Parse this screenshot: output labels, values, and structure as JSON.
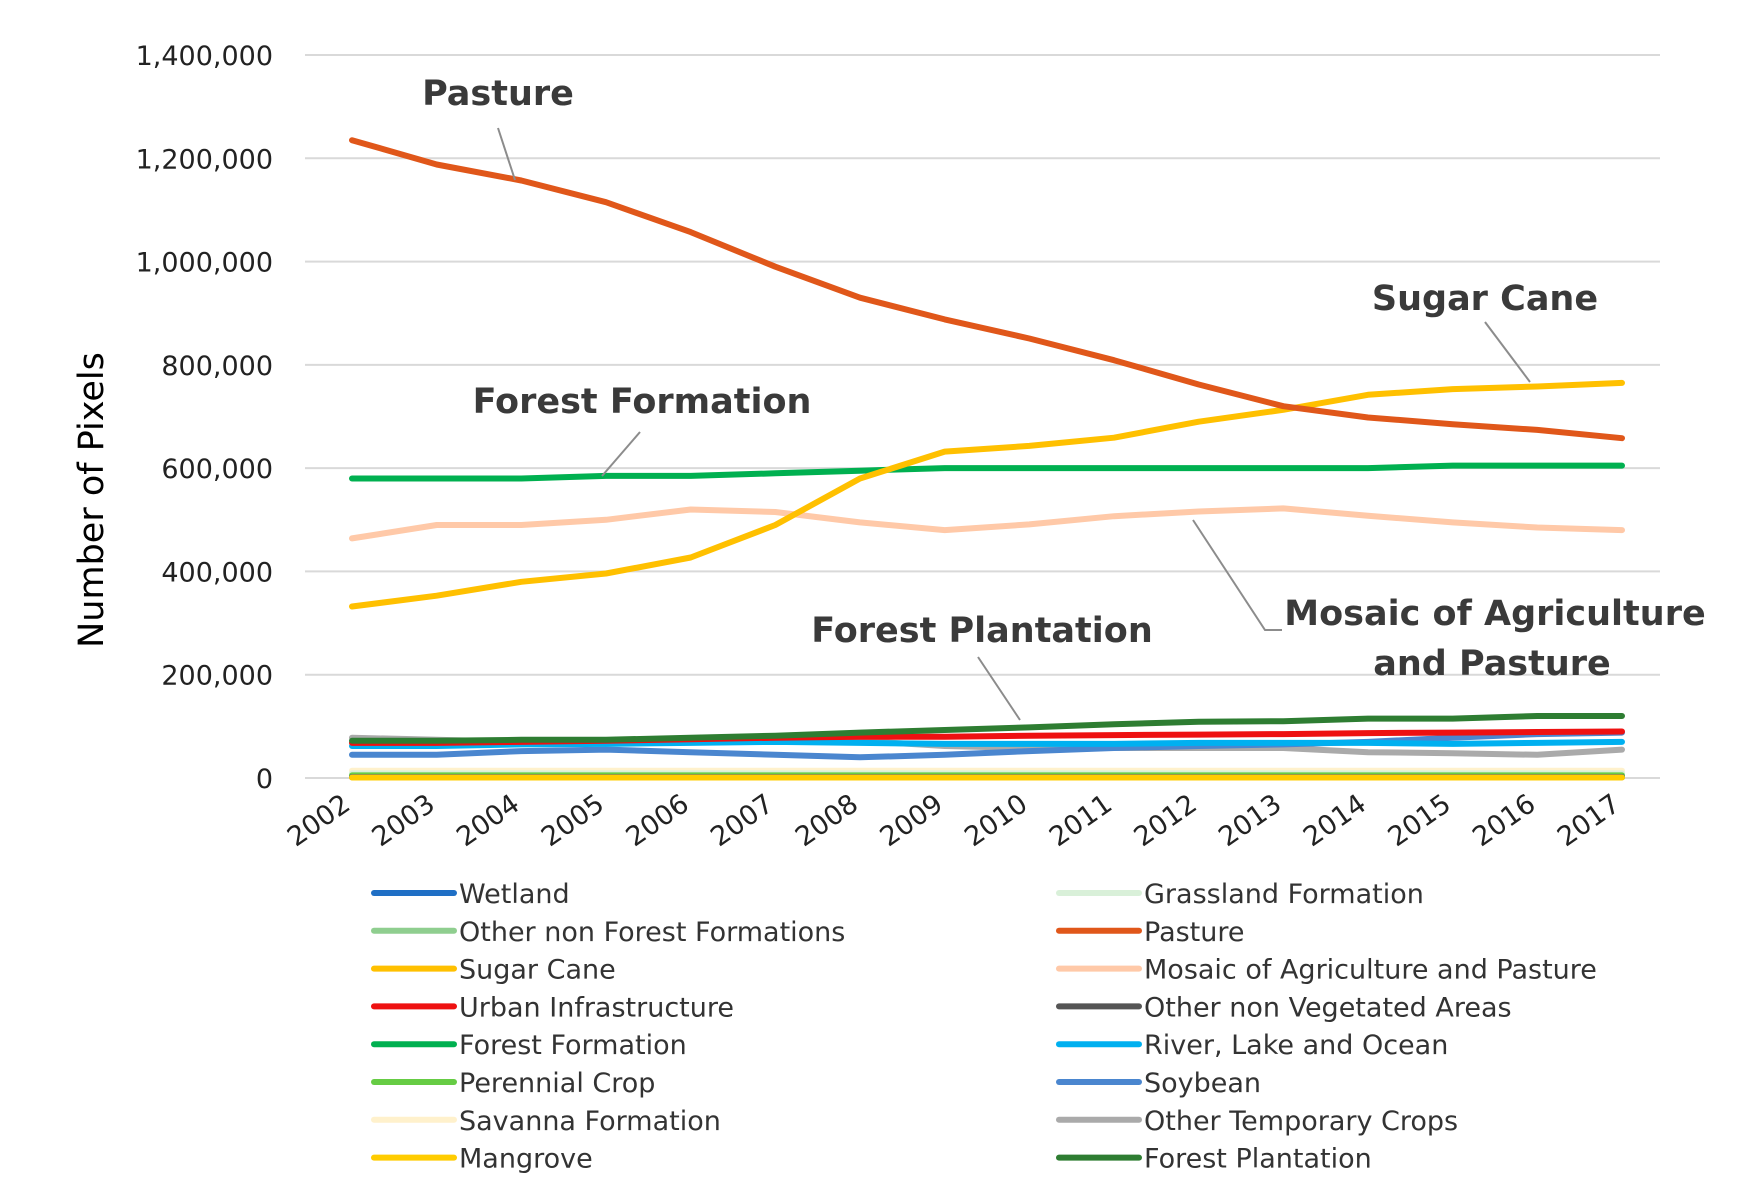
{
  "chart_data": {
    "type": "line",
    "title": "",
    "xlabel": "",
    "ylabel": "Number of Pixels",
    "ylim": [
      0,
      1400000
    ],
    "y_ticks": [
      0,
      200000,
      400000,
      600000,
      800000,
      1000000,
      1200000,
      1400000
    ],
    "y_tick_labels": [
      "0",
      "200,000",
      "400,000",
      "600,000",
      "800,000",
      "1,000,000",
      "1,200,000",
      "1,400,000"
    ],
    "grid": true,
    "legend_position": "bottom",
    "x": [
      "2002",
      "2003",
      "2004",
      "2005",
      "2006",
      "2007",
      "2008",
      "2009",
      "2010",
      "2011",
      "2012",
      "2013",
      "2014",
      "2015",
      "2016",
      "2017"
    ],
    "series": [
      {
        "name": "Wetland",
        "color": "#1f6fc5",
        "values": [
          1500,
          1500,
          1500,
          1500,
          1500,
          1500,
          1500,
          1500,
          1500,
          1500,
          1500,
          1500,
          1500,
          1500,
          1500,
          1500
        ]
      },
      {
        "name": "Grassland Formation",
        "color": "#d9f0d9",
        "values": [
          9000,
          9000,
          9000,
          9000,
          9000,
          9000,
          9000,
          9000,
          9000,
          9000,
          9000,
          9000,
          9000,
          9000,
          9000,
          9000
        ]
      },
      {
        "name": "Other non Forest Formations",
        "color": "#8fce8f",
        "values": [
          3000,
          3000,
          3000,
          3000,
          3000,
          3000,
          3000,
          3000,
          3000,
          3000,
          3000,
          3000,
          3000,
          3000,
          3000,
          3000
        ]
      },
      {
        "name": "Pasture",
        "color": "#e0571a",
        "values": [
          1235000,
          1188000,
          1157000,
          1115000,
          1057000,
          990000,
          930000,
          888000,
          851000,
          809000,
          762000,
          720000,
          698000,
          685000,
          674000,
          658000
        ]
      },
      {
        "name": "Sugar Cane",
        "color": "#ffc000",
        "values": [
          332000,
          353000,
          380000,
          396000,
          427000,
          490000,
          580000,
          632000,
          643000,
          659000,
          690000,
          713000,
          742000,
          753000,
          758000,
          765000
        ]
      },
      {
        "name": "Mosaic of Agriculture and Pasture",
        "color": "#ffc9a8",
        "values": [
          464000,
          490000,
          490000,
          500000,
          520000,
          515000,
          495000,
          480000,
          491000,
          507000,
          516000,
          522000,
          508000,
          495000,
          485000,
          480000
        ]
      },
      {
        "name": "Urban Infrastructure",
        "color": "#ee1111",
        "values": [
          68000,
          68000,
          70000,
          72000,
          75000,
          78000,
          80000,
          80000,
          82000,
          83000,
          84000,
          85000,
          87000,
          88000,
          89000,
          90000
        ]
      },
      {
        "name": "Other non Vegetated Areas",
        "color": "#555555",
        "values": [
          2000,
          2000,
          2000,
          2000,
          2000,
          2000,
          2000,
          2000,
          2000,
          2000,
          2000,
          2000,
          2000,
          2000,
          2000,
          2000
        ]
      },
      {
        "name": "Forest Formation",
        "color": "#00b050",
        "values": [
          580000,
          580000,
          580000,
          585000,
          585000,
          590000,
          595000,
          600000,
          600000,
          600000,
          600000,
          600000,
          600000,
          605000,
          605000,
          605000
        ]
      },
      {
        "name": "River, Lake and Ocean",
        "color": "#00b0f0",
        "values": [
          62000,
          62000,
          65000,
          66000,
          68000,
          70000,
          68000,
          66000,
          66000,
          66000,
          68000,
          68000,
          68000,
          66000,
          68000,
          70000
        ]
      },
      {
        "name": "Perennial Crop",
        "color": "#66cc44",
        "values": [
          5000,
          5000,
          5000,
          5000,
          5000,
          5000,
          5000,
          5000,
          5000,
          5000,
          5000,
          5000,
          5000,
          5000,
          5000,
          5000
        ]
      },
      {
        "name": "Soybean",
        "color": "#4a86cf",
        "values": [
          45000,
          45000,
          52000,
          55000,
          50000,
          45000,
          40000,
          45000,
          52000,
          58000,
          62000,
          65000,
          70000,
          78000,
          85000,
          88000
        ]
      },
      {
        "name": "Savanna Formation",
        "color": "#fff1cc",
        "values": [
          14000,
          14000,
          14000,
          14000,
          14000,
          14000,
          14000,
          14000,
          14000,
          14000,
          14000,
          14000,
          14000,
          14000,
          14000,
          14000
        ]
      },
      {
        "name": "Other Temporary Crops",
        "color": "#aaaaaa",
        "values": [
          78000,
          74000,
          70000,
          68000,
          72000,
          80000,
          72000,
          62000,
          58000,
          58000,
          58000,
          58000,
          50000,
          48000,
          45000,
          55000
        ]
      },
      {
        "name": "Mangrove",
        "color": "#ffcc00",
        "values": [
          1000,
          1000,
          1000,
          1000,
          1000,
          1000,
          1000,
          1000,
          1000,
          1000,
          1000,
          1000,
          1000,
          1000,
          1000,
          1000
        ]
      },
      {
        "name": "Forest Plantation",
        "color": "#2e7d32",
        "values": [
          72000,
          72000,
          74000,
          74000,
          78000,
          82000,
          88000,
          93000,
          98000,
          104000,
          109000,
          110000,
          115000,
          115000,
          120000,
          120000
        ]
      }
    ],
    "annotations": [
      {
        "text": "Pasture",
        "series": "Pasture"
      },
      {
        "text": "Sugar Cane",
        "series": "Sugar Cane"
      },
      {
        "text": "Forest Formation",
        "series": "Forest Formation"
      },
      {
        "text": "Mosaic of Agriculture",
        "series": "Mosaic of Agriculture and Pasture"
      },
      {
        "text": "and Pasture",
        "series": "Mosaic of Agriculture and Pasture"
      },
      {
        "text": "Forest Plantation",
        "series": "Forest Plantation"
      }
    ]
  }
}
